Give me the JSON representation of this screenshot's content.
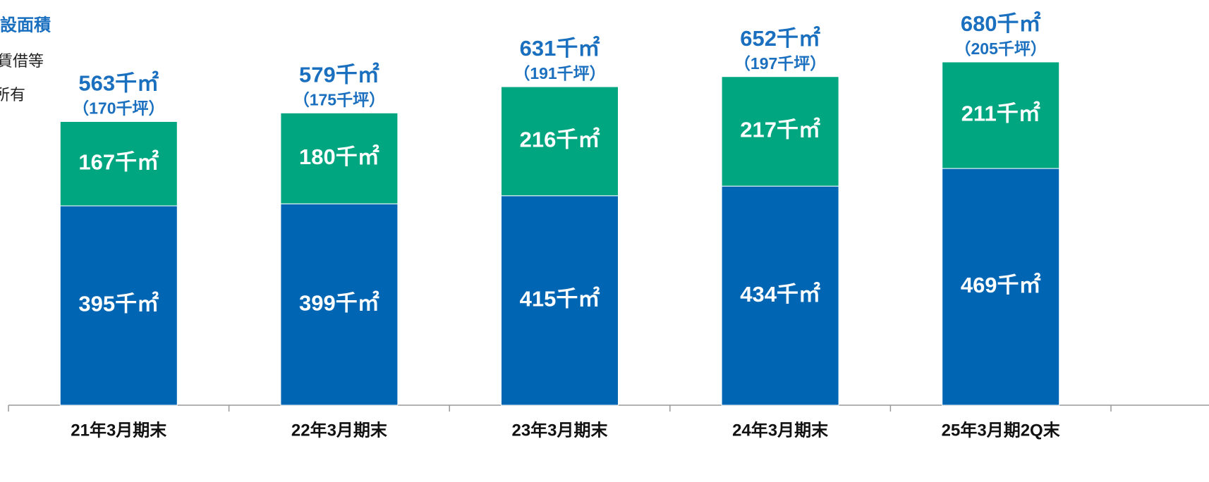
{
  "chart_data": {
    "type": "stacked_bar",
    "title": "設面積",
    "categories": [
      "21年3月期末",
      "22年3月期末",
      "23年3月期末",
      "24年3月期末",
      "25年3月期2Q末"
    ],
    "series": [
      {
        "name": "所有",
        "color": "#0066b3",
        "values": [
          395,
          399,
          415,
          434,
          469
        ],
        "value_labels": [
          "395千㎡",
          "399千㎡",
          "415千㎡",
          "434千㎡",
          "469千㎡"
        ]
      },
      {
        "name": "賃借等",
        "color": "#00a680",
        "values": [
          167,
          180,
          216,
          217,
          211
        ],
        "value_labels": [
          "167千㎡",
          "180千㎡",
          "216千㎡",
          "217千㎡",
          "211千㎡"
        ]
      }
    ],
    "total_labels": [
      "563千㎡",
      "579千㎡",
      "631千㎡",
      "652千㎡",
      "680千㎡"
    ],
    "tsubo_labels": [
      "（170千坪）",
      "（175千坪）",
      "（191千坪）",
      "（197千坪）",
      "（205千坪）"
    ],
    "ylim": [
      0,
      800
    ]
  }
}
